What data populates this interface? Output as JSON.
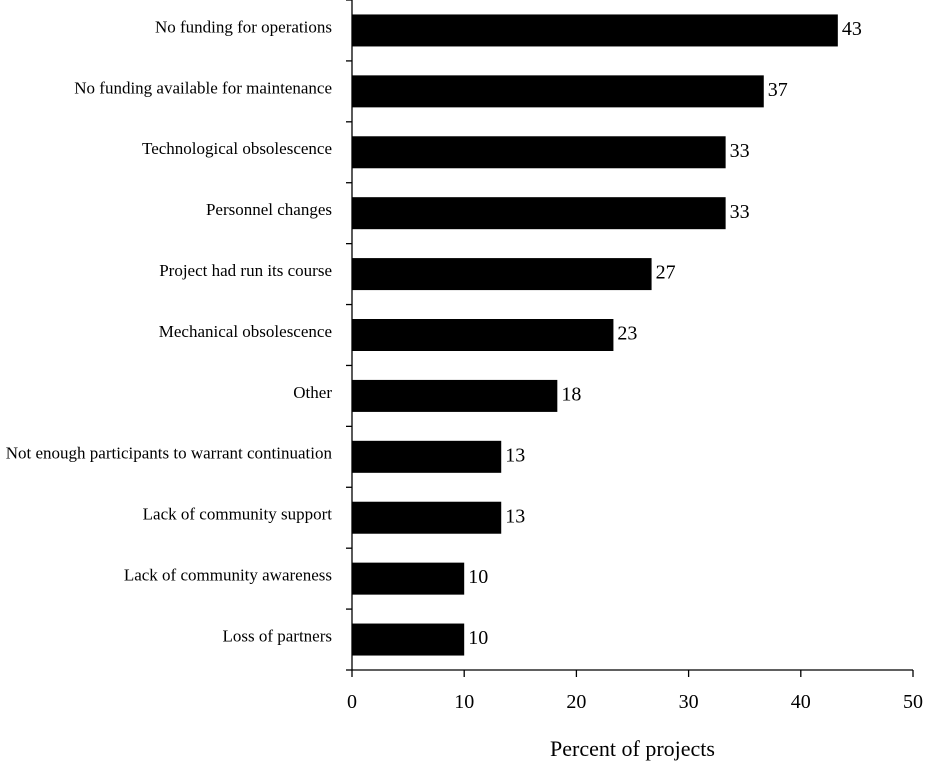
{
  "chart_data": {
    "type": "bar",
    "orientation": "horizontal",
    "categories": [
      "No funding for operations",
      "No funding available for maintenance",
      "Technological obsolescence",
      "Personnel changes",
      "Project had run its course",
      "Mechanical obsolescence",
      "Other",
      "Not enough participants to warrant continuation",
      "Lack of community support",
      "Lack of community awareness",
      "Loss of partners"
    ],
    "values": [
      43.3,
      36.7,
      33.3,
      33.3,
      26.7,
      23.3,
      18.3,
      13.3,
      13.3,
      10,
      10
    ],
    "data_labels": [
      "43",
      "37",
      "33",
      "33",
      "27",
      "23",
      "18",
      "13",
      "13",
      "10",
      "10"
    ],
    "xlabel": "Percent of projects",
    "ylabel": "",
    "xlim": [
      0,
      50
    ],
    "xticks": [
      0,
      10,
      20,
      30,
      40,
      50
    ],
    "grid": false,
    "bar_color": "#000000"
  }
}
